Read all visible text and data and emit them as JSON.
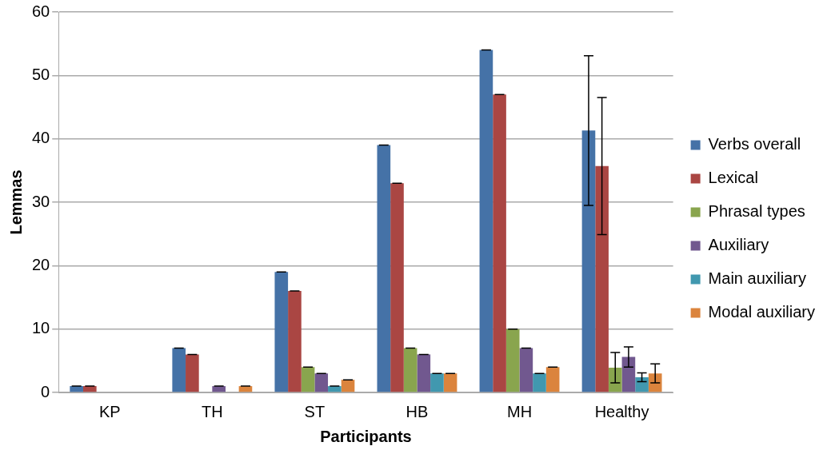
{
  "chart_data": {
    "type": "bar",
    "xlabel": "Participants",
    "ylabel": "Lemmas",
    "categories": [
      "KP",
      "TH",
      "ST",
      "HB",
      "MH",
      "Healthy"
    ],
    "series": [
      {
        "name": "Verbs overall",
        "color": "#4572a7",
        "values": [
          1,
          7,
          19,
          39,
          54,
          41.3
        ],
        "errors": [
          0,
          0,
          0,
          0,
          0,
          11.8
        ]
      },
      {
        "name": "Lexical",
        "color": "#aa4643",
        "values": [
          1,
          6,
          16,
          33,
          47,
          35.7
        ],
        "errors": [
          0,
          0,
          0,
          0,
          0,
          10.8
        ]
      },
      {
        "name": "Phrasal types",
        "color": "#89a54e",
        "values": [
          0,
          0,
          4,
          7,
          10,
          3.9
        ],
        "errors": [
          null,
          null,
          0,
          0,
          0,
          2.4
        ]
      },
      {
        "name": "Auxiliary",
        "color": "#71588f",
        "values": [
          0,
          1,
          3,
          6,
          7,
          5.6
        ],
        "errors": [
          null,
          0,
          0,
          0,
          0,
          1.6
        ]
      },
      {
        "name": "Main auxiliary",
        "color": "#4198af",
        "values": [
          0,
          0,
          1,
          3,
          3,
          2.4
        ],
        "errors": [
          null,
          null,
          0,
          0,
          0,
          0.7
        ]
      },
      {
        "name": "Modal auxiliary",
        "color": "#db843d",
        "values": [
          0,
          1,
          2,
          3,
          4,
          3.0
        ],
        "errors": [
          null,
          0,
          0,
          0,
          0,
          1.5
        ]
      }
    ],
    "ylim": [
      0,
      60
    ],
    "yticks": [
      0,
      10,
      20,
      30,
      40,
      50,
      60
    ],
    "grid": "y",
    "legend": "right"
  }
}
